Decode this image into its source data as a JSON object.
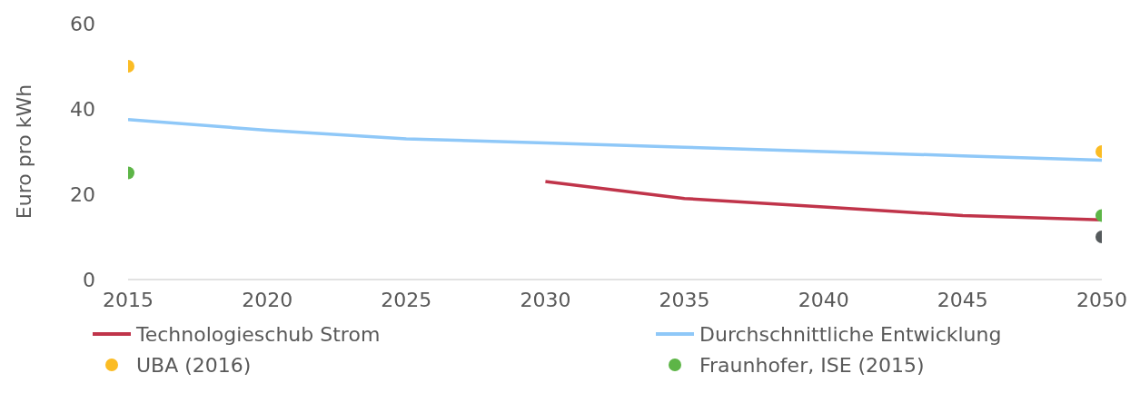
{
  "chart_data": {
    "type": "line",
    "ylabel": "Euro pro kWh",
    "xlim": [
      2015,
      2050
    ],
    "xticks": [
      2015,
      2020,
      2025,
      2030,
      2035,
      2040,
      2045,
      2050
    ],
    "ylim": [
      0,
      60
    ],
    "yticks": [
      0,
      20,
      40,
      60
    ],
    "legend": "bottom",
    "line_style": "solid",
    "series": [
      {
        "name": "Technologieschub Strom",
        "color": "#c0344a",
        "x": [
          2030,
          2035,
          2040,
          2045,
          2050
        ],
        "values": [
          23,
          19,
          17,
          15,
          14
        ]
      },
      {
        "name": "Durchschnittliche Entwicklung",
        "color": "#8fc8f8",
        "x": [
          2015,
          2020,
          2025,
          2030,
          2035,
          2040,
          2045,
          2050
        ],
        "values": [
          37.5,
          35,
          33,
          32,
          31,
          30,
          29,
          28
        ]
      },
      {
        "name": "UBA (2016)",
        "type": "scatter",
        "marker": "circle",
        "color": "#fbbc24",
        "x": [
          2015,
          2050
        ],
        "values": [
          50,
          30
        ]
      },
      {
        "name": "Fraunhofer, ISE (2015)",
        "type": "scatter",
        "marker": "circle",
        "color": "#5db547",
        "x": [
          2015,
          2050
        ],
        "values": [
          25,
          15
        ]
      },
      {
        "type": "scatter",
        "marker": "circle",
        "color": "#555a5c",
        "x": [
          2050
        ],
        "values": [
          10
        ]
      }
    ]
  }
}
